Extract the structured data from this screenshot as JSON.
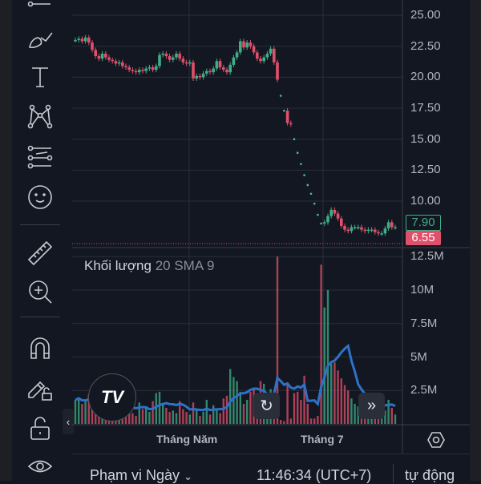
{
  "toolbar": {
    "items": [
      "horizontal-line-tool",
      "brush-tool",
      "text-tool",
      "pattern-tool",
      "prediction-tool",
      "emoji-tool",
      "ruler-tool",
      "zoom-in-tool",
      "magnet-tool",
      "lock-drawings-tool",
      "lock-tool",
      "visibility-tool"
    ]
  },
  "colors": {
    "up": "#3fae86",
    "down": "#e0506a",
    "sma": "#2d72c9",
    "background": "#131722",
    "grid": "#2a2e39"
  },
  "price_axis": {
    "ticks": [
      "25.00",
      "22.50",
      "20.00",
      "17.50",
      "15.00",
      "12.50",
      "10.00"
    ],
    "tick_values": [
      25,
      22.5,
      20,
      17.5,
      15,
      12.5,
      10
    ],
    "last_close_label": "7.90",
    "current_price_label": "6.55"
  },
  "volume_panel": {
    "title": "Khối lượng",
    "params": "20 SMA 9",
    "ticks": [
      "12.5M",
      "10M",
      "7.5M",
      "5M",
      "2.5M"
    ],
    "tick_values": [
      12.5,
      10,
      7.5,
      5,
      2.5
    ]
  },
  "time_axis": {
    "labels": [
      "Tháng Năm",
      "Tháng 7"
    ]
  },
  "chart_data": {
    "type": "candlestick",
    "closes": [
      23.0,
      23.1,
      22.9,
      23.2,
      22.8,
      22.2,
      21.7,
      21.5,
      21.9,
      21.6,
      21.4,
      21.3,
      21.1,
      21.2,
      20.9,
      20.8,
      20.6,
      20.5,
      20.4,
      20.6,
      20.5,
      20.7,
      20.8,
      20.6,
      20.9,
      21.8,
      21.9,
      21.7,
      21.4,
      21.6,
      21.9,
      21.5,
      21.2,
      21.1,
      21.2,
      19.9,
      20.1,
      20.0,
      20.3,
      20.5,
      20.4,
      20.7,
      21.3,
      20.8,
      20.6,
      20.4,
      21.0,
      21.6,
      22.0,
      22.9,
      22.4,
      22.8,
      22.5,
      22.0,
      21.5,
      21.3,
      21.6,
      21.9,
      22.3,
      21.2,
      19.8,
      18.5,
      17.3,
      16.3,
      16.2,
      15.0,
      13.9,
      13.0,
      12.1,
      11.3,
      10.6,
      9.8,
      8.9,
      8.2,
      8.3,
      8.8,
      9.3,
      9.0,
      8.6,
      8.0,
      7.7,
      7.6,
      7.9,
      7.9,
      7.9,
      7.7,
      7.6,
      7.7,
      7.7,
      7.5,
      7.4,
      7.4,
      7.8,
      8.3,
      7.9,
      7.9
    ],
    "flat_days": [
      61,
      62,
      65,
      66,
      67,
      68,
      69,
      70,
      71,
      72,
      73
    ],
    "volumes_m": [
      1.8,
      2.0,
      1.5,
      1.7,
      2.2,
      1.3,
      1.0,
      1.9,
      1.2,
      1.1,
      1.0,
      0.9,
      1.5,
      2.1,
      1.4,
      1.0,
      1.2,
      0.8,
      0.6,
      1.6,
      1.1,
      1.3,
      0.9,
      1.7,
      2.3,
      2.4,
      1.5,
      1.2,
      0.9,
      1.0,
      0.8,
      1.7,
      1.1,
      0.9,
      0.7,
      1.6,
      1.0,
      0.6,
      0.9,
      1.8,
      0.7,
      1.4,
      1.1,
      0.8,
      1.9,
      2.1,
      4.1,
      3.5,
      3.2,
      2.4,
      1.5,
      1.8,
      2.4,
      2.7,
      2.1,
      3.2,
      3.0,
      0.9,
      2.6,
      1.5,
      12.5,
      0.3,
      0.2,
      3.0,
      0.4,
      2.3,
      2.4,
      1.8,
      3.6,
      1.5,
      0.4,
      0.4,
      0.6,
      11.9,
      8.7,
      10.0,
      4.5,
      4.6,
      4.0,
      3.4,
      2.9,
      2.5,
      1.9,
      1.5,
      1.3,
      1.1,
      1.6,
      1.2,
      1.3,
      1.1,
      1.7,
      2.1,
      1.0,
      1.8,
      1.2,
      0.7
    ],
    "sma_period": 9,
    "y_range": [
      6.0,
      25.9
    ],
    "volume_range": [
      0,
      12.5
    ],
    "grid": true
  },
  "overlay": {
    "logo": "TV",
    "reset_icon": "reset-icon",
    "scroll_icon": "double-chevron-right-icon"
  },
  "bottom_bar": {
    "range_label": "Phạm vi Ngày",
    "clock": "11:46:34 (UTC+7)",
    "scale_mode": "tự động"
  }
}
